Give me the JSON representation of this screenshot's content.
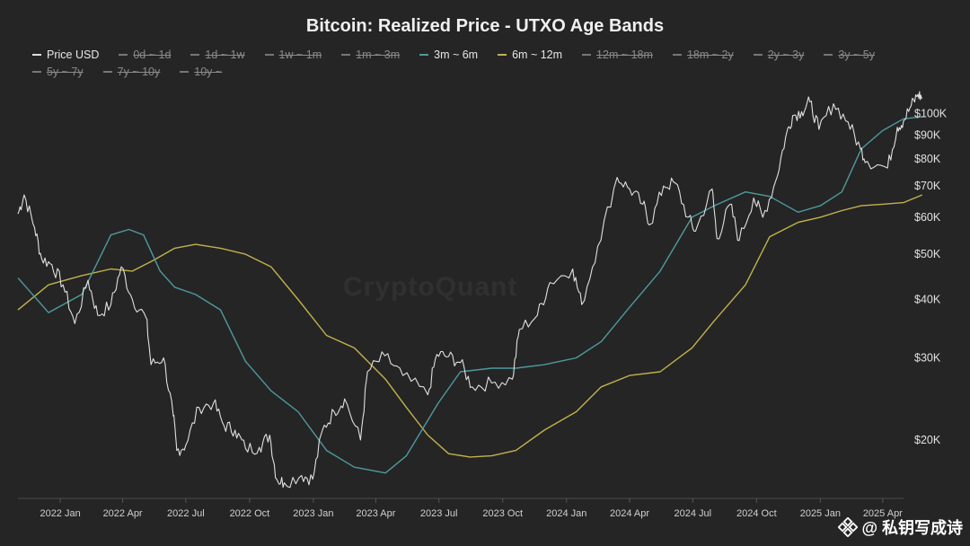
{
  "chart_data": {
    "type": "line",
    "title": "Bitcoin: Realized Price - UTXO Age Bands",
    "y_scale": "log",
    "ylim": [
      15000,
      115000
    ],
    "y_ticks": [
      {
        "value": 100000,
        "label": "$100K"
      },
      {
        "value": 90000,
        "label": "$90K"
      },
      {
        "value": 80000,
        "label": "$80K"
      },
      {
        "value": 70000,
        "label": "$70K"
      },
      {
        "value": 60000,
        "label": "$60K"
      },
      {
        "value": 50000,
        "label": "$50K"
      },
      {
        "value": 40000,
        "label": "$40K"
      },
      {
        "value": 30000,
        "label": "$30K"
      },
      {
        "value": 20000,
        "label": "$20K"
      }
    ],
    "xlim": [
      "2021-11-01",
      "2025-05-01"
    ],
    "x_ticks": [
      {
        "date": "2022-01-01",
        "label": "2022 Jan"
      },
      {
        "date": "2022-04-01",
        "label": "2022 Apr"
      },
      {
        "date": "2022-07-01",
        "label": "2022 Jul"
      },
      {
        "date": "2022-10-01",
        "label": "2022 Oct"
      },
      {
        "date": "2023-01-01",
        "label": "2023 Jan"
      },
      {
        "date": "2023-04-01",
        "label": "2023 Apr"
      },
      {
        "date": "2023-07-01",
        "label": "2023 Jul"
      },
      {
        "date": "2023-10-01",
        "label": "2023 Oct"
      },
      {
        "date": "2024-01-01",
        "label": "2024 Jan"
      },
      {
        "date": "2024-04-01",
        "label": "2024 Apr"
      },
      {
        "date": "2024-07-01",
        "label": "2024 Jul"
      },
      {
        "date": "2024-10-01",
        "label": "2024 Oct"
      },
      {
        "date": "2025-01-01",
        "label": "2025 Jan"
      },
      {
        "date": "2025-04-01",
        "label": "2025 Apr"
      }
    ],
    "legend": [
      {
        "name": "Price USD",
        "visible": true,
        "color": "#e0e0e0"
      },
      {
        "name": "0d ~ 1d",
        "visible": false,
        "color": "#888888"
      },
      {
        "name": "1d ~ 1w",
        "visible": false,
        "color": "#888888"
      },
      {
        "name": "1w ~ 1m",
        "visible": false,
        "color": "#888888"
      },
      {
        "name": "1m ~ 3m",
        "visible": false,
        "color": "#888888"
      },
      {
        "name": "3m ~ 6m",
        "visible": true,
        "color": "#4f9a9c"
      },
      {
        "name": "6m ~ 12m",
        "visible": true,
        "color": "#c2b24a"
      },
      {
        "name": "12m ~ 18m",
        "visible": false,
        "color": "#888888"
      },
      {
        "name": "18m ~ 2y",
        "visible": false,
        "color": "#888888"
      },
      {
        "name": "2y ~ 3y",
        "visible": false,
        "color": "#888888"
      },
      {
        "name": "3y ~ 5y",
        "visible": false,
        "color": "#888888"
      },
      {
        "name": "5y ~ 7y",
        "visible": false,
        "color": "#888888"
      },
      {
        "name": "7y ~ 10y",
        "visible": false,
        "color": "#888888"
      },
      {
        "name": "10y ~",
        "visible": false,
        "color": "#888888"
      }
    ],
    "series": [
      {
        "name": "Price USD",
        "color": "#e0e0e0",
        "points": [
          [
            "2021-11-01",
            61000
          ],
          [
            "2021-11-10",
            67000
          ],
          [
            "2021-11-25",
            57000
          ],
          [
            "2021-12-05",
            49000
          ],
          [
            "2021-12-20",
            47500
          ],
          [
            "2022-01-05",
            43000
          ],
          [
            "2022-01-22",
            35500
          ],
          [
            "2022-02-10",
            44000
          ],
          [
            "2022-02-24",
            37000
          ],
          [
            "2022-03-15",
            39000
          ],
          [
            "2022-03-30",
            47000
          ],
          [
            "2022-04-15",
            40000
          ],
          [
            "2022-05-05",
            36500
          ],
          [
            "2022-05-12",
            29000
          ],
          [
            "2022-05-30",
            30000
          ],
          [
            "2022-06-13",
            22500
          ],
          [
            "2022-06-18",
            19000
          ],
          [
            "2022-07-01",
            19500
          ],
          [
            "2022-07-20",
            23500
          ],
          [
            "2022-08-10",
            24000
          ],
          [
            "2022-08-25",
            21500
          ],
          [
            "2022-09-10",
            21000
          ],
          [
            "2022-09-25",
            19200
          ],
          [
            "2022-10-15",
            19300
          ],
          [
            "2022-10-30",
            20500
          ],
          [
            "2022-11-09",
            16500
          ],
          [
            "2022-11-20",
            16200
          ],
          [
            "2022-12-15",
            16800
          ],
          [
            "2022-12-31",
            16500
          ],
          [
            "2023-01-14",
            21000
          ],
          [
            "2023-01-31",
            23000
          ],
          [
            "2023-02-15",
            24500
          ],
          [
            "2023-03-10",
            20000
          ],
          [
            "2023-03-20",
            28000
          ],
          [
            "2023-04-14",
            30300
          ],
          [
            "2023-05-10",
            27500
          ],
          [
            "2023-06-15",
            25000
          ],
          [
            "2023-06-28",
            30500
          ],
          [
            "2023-07-15",
            30200
          ],
          [
            "2023-08-01",
            29300
          ],
          [
            "2023-08-18",
            26000
          ],
          [
            "2023-09-15",
            26500
          ],
          [
            "2023-10-15",
            27000
          ],
          [
            "2023-10-25",
            34500
          ],
          [
            "2023-11-20",
            37000
          ],
          [
            "2023-12-08",
            43500
          ],
          [
            "2024-01-10",
            46500
          ],
          [
            "2024-01-23",
            39000
          ],
          [
            "2024-02-15",
            52000
          ],
          [
            "2024-03-14",
            73000
          ],
          [
            "2024-04-01",
            69000
          ],
          [
            "2024-04-20",
            64000
          ],
          [
            "2024-05-01",
            58000
          ],
          [
            "2024-05-20",
            70000
          ],
          [
            "2024-06-06",
            71000
          ],
          [
            "2024-06-24",
            60000
          ],
          [
            "2024-07-05",
            56000
          ],
          [
            "2024-07-29",
            69000
          ],
          [
            "2024-08-05",
            54000
          ],
          [
            "2024-08-24",
            64000
          ],
          [
            "2024-09-06",
            53500
          ],
          [
            "2024-09-27",
            66000
          ],
          [
            "2024-10-10",
            60000
          ],
          [
            "2024-10-29",
            72000
          ],
          [
            "2024-11-12",
            89000
          ],
          [
            "2024-11-22",
            99000
          ],
          [
            "2024-12-05",
            101000
          ],
          [
            "2024-12-17",
            106000
          ],
          [
            "2024-12-30",
            92500
          ],
          [
            "2025-01-20",
            105000
          ],
          [
            "2025-02-10",
            96000
          ],
          [
            "2025-02-28",
            84000
          ],
          [
            "2025-03-10",
            79000
          ],
          [
            "2025-04-08",
            76500
          ],
          [
            "2025-04-22",
            93500
          ],
          [
            "2025-05-01",
            96500
          ],
          [
            "2025-05-12",
            104000
          ],
          [
            "2025-05-22",
            110000
          ],
          [
            "2025-05-28",
            108000
          ]
        ]
      },
      {
        "name": "3m ~ 6m",
        "color": "#4f9a9c",
        "points": [
          [
            "2021-11-01",
            44500
          ],
          [
            "2021-12-15",
            37500
          ],
          [
            "2022-02-01",
            41000
          ],
          [
            "2022-03-15",
            55000
          ],
          [
            "2022-04-10",
            56500
          ],
          [
            "2022-05-01",
            55000
          ],
          [
            "2022-05-25",
            46000
          ],
          [
            "2022-06-15",
            42500
          ],
          [
            "2022-07-15",
            41000
          ],
          [
            "2022-08-20",
            38000
          ],
          [
            "2022-09-25",
            29500
          ],
          [
            "2022-11-01",
            25500
          ],
          [
            "2022-12-10",
            23000
          ],
          [
            "2023-01-20",
            19000
          ],
          [
            "2023-03-01",
            17500
          ],
          [
            "2023-04-15",
            17000
          ],
          [
            "2023-05-15",
            18500
          ],
          [
            "2023-06-30",
            24000
          ],
          [
            "2023-08-01",
            28000
          ],
          [
            "2023-09-15",
            28500
          ],
          [
            "2023-10-20",
            28500
          ],
          [
            "2023-11-30",
            29000
          ],
          [
            "2024-01-15",
            30000
          ],
          [
            "2024-02-20",
            32500
          ],
          [
            "2024-04-01",
            38500
          ],
          [
            "2024-05-15",
            46000
          ],
          [
            "2024-06-30",
            60000
          ],
          [
            "2024-08-01",
            63500
          ],
          [
            "2024-09-15",
            68000
          ],
          [
            "2024-10-20",
            66500
          ],
          [
            "2024-11-30",
            61500
          ],
          [
            "2025-01-01",
            63500
          ],
          [
            "2025-02-01",
            68000
          ],
          [
            "2025-03-01",
            84000
          ],
          [
            "2025-04-01",
            92000
          ],
          [
            "2025-05-01",
            97500
          ],
          [
            "2025-05-28",
            98500
          ]
        ]
      },
      {
        "name": "6m ~ 12m",
        "color": "#c2b24a",
        "points": [
          [
            "2021-11-01",
            38000
          ],
          [
            "2021-12-15",
            43000
          ],
          [
            "2022-02-01",
            45000
          ],
          [
            "2022-03-15",
            46500
          ],
          [
            "2022-04-15",
            46000
          ],
          [
            "2022-05-15",
            48500
          ],
          [
            "2022-06-15",
            51500
          ],
          [
            "2022-07-15",
            52500
          ],
          [
            "2022-08-20",
            51500
          ],
          [
            "2022-09-25",
            50000
          ],
          [
            "2022-11-01",
            47000
          ],
          [
            "2022-12-10",
            40000
          ],
          [
            "2023-01-20",
            33500
          ],
          [
            "2023-03-01",
            31500
          ],
          [
            "2023-04-15",
            27000
          ],
          [
            "2023-05-15",
            23500
          ],
          [
            "2023-06-15",
            20500
          ],
          [
            "2023-07-15",
            18700
          ],
          [
            "2023-08-15",
            18400
          ],
          [
            "2023-09-15",
            18500
          ],
          [
            "2023-10-20",
            19000
          ],
          [
            "2023-11-30",
            21000
          ],
          [
            "2024-01-15",
            23000
          ],
          [
            "2024-02-20",
            26000
          ],
          [
            "2024-04-01",
            27500
          ],
          [
            "2024-05-15",
            28000
          ],
          [
            "2024-06-30",
            31500
          ],
          [
            "2024-08-01",
            36000
          ],
          [
            "2024-09-15",
            43000
          ],
          [
            "2024-10-20",
            54500
          ],
          [
            "2024-11-30",
            58500
          ],
          [
            "2025-01-01",
            60000
          ],
          [
            "2025-02-01",
            62000
          ],
          [
            "2025-03-01",
            63500
          ],
          [
            "2025-04-01",
            64000
          ],
          [
            "2025-05-01",
            64500
          ],
          [
            "2025-05-28",
            67000
          ]
        ]
      }
    ],
    "watermark": "CryptoQuant"
  },
  "footer": {
    "handle": "@ 私钥写成诗"
  }
}
